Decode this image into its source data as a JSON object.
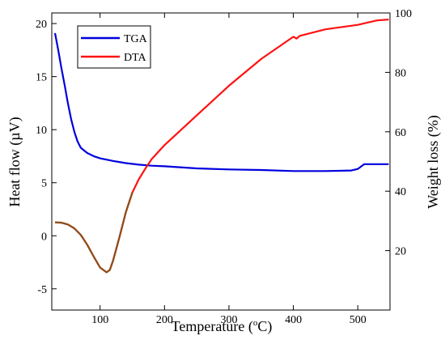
{
  "chart_data": {
    "type": "line",
    "title": "",
    "xlabel": "Temperature (°C)",
    "xlabel_parts": {
      "pre": "Temperature (",
      "sup": "o",
      "post": "C)"
    },
    "ylabel_left": "Heat flow (µV)",
    "ylabel_right": "Weight loss (%)",
    "xlim": [
      25,
      550
    ],
    "ylim_left": [
      -7.0,
      21.0
    ],
    "ylim_right": [
      0,
      100
    ],
    "x_ticks": [
      100,
      200,
      300,
      400,
      500
    ],
    "y_left_ticks": [
      -5,
      0,
      5,
      10,
      15,
      20
    ],
    "y_right_ticks": [
      20,
      40,
      60,
      80,
      100
    ],
    "grid": false,
    "legend_position": "top-left",
    "series": [
      {
        "name": "TGA",
        "axis": "left",
        "color": "#0000dd",
        "x": [
          30,
          35,
          40,
          45,
          50,
          55,
          60,
          65,
          70,
          80,
          90,
          100,
          120,
          140,
          160,
          180,
          200,
          250,
          300,
          350,
          400,
          450,
          490,
          500,
          510,
          520,
          530,
          540,
          548
        ],
        "y": [
          19.1,
          17.5,
          15.8,
          14.2,
          12.5,
          11.0,
          9.8,
          8.9,
          8.3,
          7.8,
          7.5,
          7.3,
          7.05,
          6.85,
          6.7,
          6.6,
          6.55,
          6.35,
          6.25,
          6.2,
          6.1,
          6.1,
          6.15,
          6.3,
          6.75,
          6.75,
          6.75,
          6.75,
          6.75
        ]
      },
      {
        "name": "DTA",
        "axis": "right",
        "color": "#ff1111",
        "x": [
          30,
          40,
          50,
          60,
          70,
          80,
          90,
          100,
          110,
          115,
          120,
          130,
          140,
          150,
          160,
          170,
          180,
          200,
          250,
          300,
          350,
          400,
          405,
          410,
          450,
          500,
          530,
          548
        ],
        "y": [
          29.5,
          29.4,
          28.8,
          27.5,
          25.3,
          22.0,
          18.0,
          14.3,
          12.7,
          13.5,
          16.5,
          24.5,
          33.0,
          39.5,
          44.0,
          47.5,
          50.8,
          55.5,
          65.5,
          75.5,
          84.5,
          92.0,
          91.4,
          92.3,
          94.5,
          96.0,
          97.5,
          97.8
        ]
      }
    ],
    "overlap_color": "#8b4f1a"
  }
}
